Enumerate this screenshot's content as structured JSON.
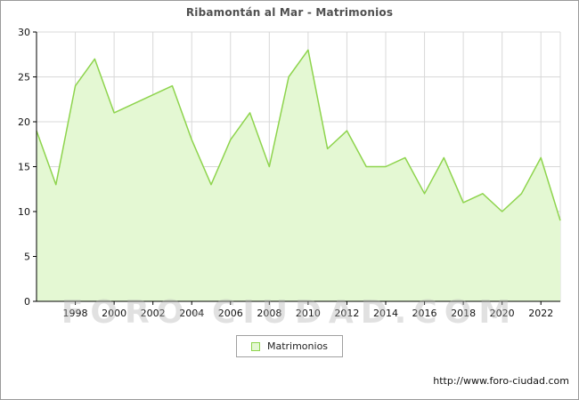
{
  "title": "Ribamontán al Mar - Matrimonios",
  "legend": {
    "label": "Matrimonios"
  },
  "watermark": "FORO-CIUDAD.COM",
  "footer_url": "http://www.foro-ciudad.com",
  "colors": {
    "area_fill": "#e4f8d3",
    "line": "#8ed44d",
    "grid": "#d8d8d8",
    "axis": "#000000",
    "title_text": "#4f4f4f",
    "legend_swatch_fill": "#e4f8d3",
    "legend_swatch_border": "#8ed44d"
  },
  "chart_data": {
    "type": "area",
    "title": "Ribamontán al Mar - Matrimonios",
    "xlabel": "",
    "ylabel": "",
    "x": [
      1996,
      1997,
      1998,
      1999,
      2000,
      2001,
      2002,
      2003,
      2004,
      2005,
      2006,
      2007,
      2008,
      2009,
      2010,
      2011,
      2012,
      2013,
      2014,
      2015,
      2016,
      2017,
      2018,
      2019,
      2020,
      2021,
      2022,
      2023
    ],
    "series": [
      {
        "name": "Matrimonios",
        "values": [
          19,
          13,
          24,
          27,
          21,
          22,
          23,
          24,
          18,
          13,
          18,
          21,
          15,
          25,
          28,
          17,
          19,
          15,
          15,
          16,
          12,
          16,
          11,
          12,
          10,
          12,
          16,
          9
        ]
      }
    ],
    "ylim": [
      0,
      30
    ],
    "yticks": [
      0,
      5,
      10,
      15,
      20,
      25,
      30
    ],
    "xticks": [
      1998,
      2000,
      2002,
      2004,
      2006,
      2008,
      2010,
      2012,
      2014,
      2016,
      2018,
      2020,
      2022
    ],
    "grid": true,
    "legend_position": "bottom-center"
  }
}
